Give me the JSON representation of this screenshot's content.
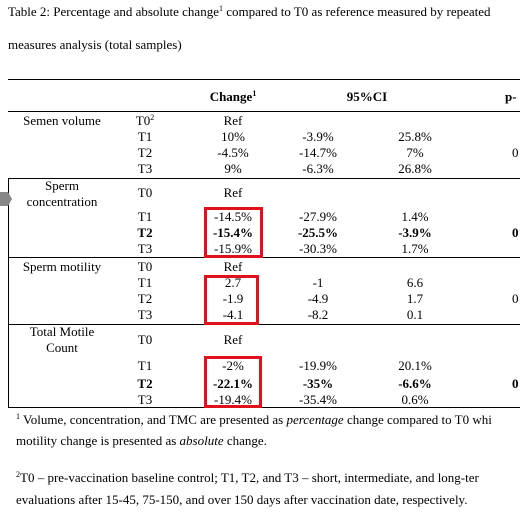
{
  "title": {
    "lines": [
      {
        "before": "Table 2: Percentage and absolute change",
        "note": "1",
        "after": " compared to T0 as reference measured by repeated"
      },
      {
        "before": "measures analysis (total samples)"
      }
    ]
  },
  "table": {
    "header": {
      "change": "Change",
      "change_note": "1",
      "ci": "95%CI",
      "p": "p-"
    },
    "groups": [
      {
        "label": [
          "Semen volume"
        ],
        "rows": [
          {
            "time": "T0",
            "time_note": "2",
            "change": "Ref"
          },
          {
            "time": "T1",
            "change": "10%",
            "ci_low": "-3.9%",
            "ci_high": "25.8%"
          },
          {
            "time": "T2",
            "change": "-4.5%",
            "ci_low": "-14.7%",
            "ci_high": "7%",
            "p": "0"
          },
          {
            "time": "T3",
            "change": "9%",
            "ci_low": "-6.3%",
            "ci_high": "26.8%"
          }
        ]
      },
      {
        "label": [
          "Sperm",
          "concentration"
        ],
        "highlighted": true,
        "rows": [
          {
            "time": "T0",
            "change": "Ref"
          },
          {
            "time": "T1",
            "change": "-14.5%",
            "ci_low": "-27.9%",
            "ci_high": "1.4%"
          },
          {
            "time": "T2",
            "change": "-15.4%",
            "ci_low": "-25.5%",
            "ci_high": "-3.9%",
            "p": "0",
            "bold": true
          },
          {
            "time": "T3",
            "change": "-15.9%",
            "ci_low": "-30.3%",
            "ci_high": "1.7%"
          }
        ]
      },
      {
        "label": [
          "Sperm motility"
        ],
        "highlighted": true,
        "rows": [
          {
            "time": "T0",
            "change": "Ref"
          },
          {
            "time": "T1",
            "change": "2.7",
            "ci_low": "-1",
            "ci_high": "6.6"
          },
          {
            "time": "T2",
            "change": "-1.9",
            "ci_low": "-4.9",
            "ci_high": "1.7",
            "p": "0"
          },
          {
            "time": "T3",
            "change": "-4.1",
            "ci_low": "-8.2",
            "ci_high": "0.1"
          }
        ]
      },
      {
        "label": [
          "Total Motile",
          "Count"
        ],
        "highlighted": true,
        "rows": [
          {
            "time": "T0",
            "change": "Ref"
          },
          {
            "time": "T1",
            "change": "-2%",
            "ci_low": "-19.9%",
            "ci_high": "20.1%"
          },
          {
            "time": "T2",
            "change": "-22.1%",
            "ci_low": "-35%",
            "ci_high": "-6.6%",
            "p": "0",
            "bold": true
          },
          {
            "time": "T3",
            "change": "-19.4%",
            "ci_low": "-35.4%",
            "ci_high": "0.6%"
          }
        ]
      }
    ]
  },
  "footnotes": [
    {
      "note": "1",
      "a": " Volume, concentration, and TMC are presented as ",
      "b": "percentage",
      "c": " change compared to T0 whi",
      "d": "motility change is presented as ",
      "e": "absolute",
      "f": " change."
    },
    {
      "note": "2",
      "a": "T0 – pre-vaccination baseline control; T1, T2, and T3 – short, intermediate, and long-ter",
      "d": "evaluations after 15-45, 75-150, and over 150 days after vaccination date, respectively."
    }
  ]
}
